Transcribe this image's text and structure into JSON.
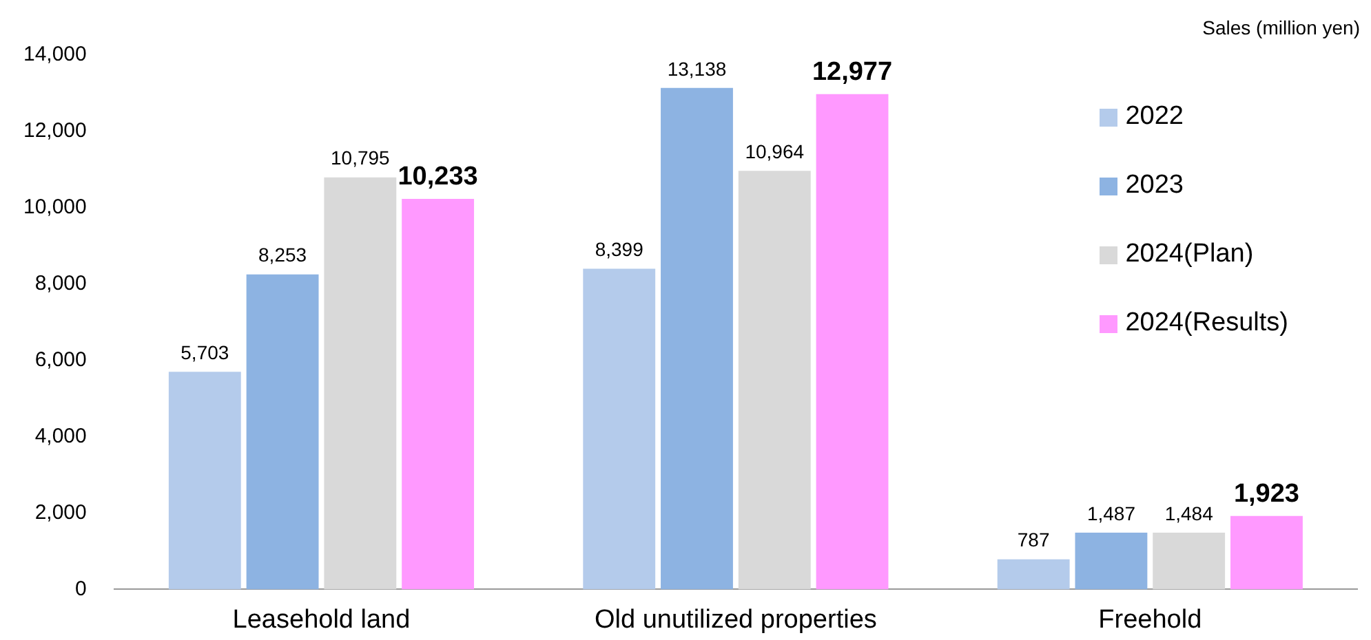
{
  "chart_data": {
    "type": "bar",
    "ylabel": "Sales (million yen)",
    "categories": [
      "Leasehold land",
      "Old unutilized properties",
      "Freehold"
    ],
    "series": [
      {
        "name": "2022",
        "color": "#b4cbeb",
        "values": [
          5703,
          8399,
          787
        ],
        "value_labels": [
          "5,703",
          "8,399",
          "787"
        ]
      },
      {
        "name": "2023",
        "color": "#8db3e2",
        "values": [
          8253,
          13138,
          1487
        ],
        "value_labels": [
          "8,253",
          "13,138",
          "1,487"
        ]
      },
      {
        "name": "2024(Plan)",
        "color": "#d9d9d9",
        "values": [
          10795,
          10964,
          1484
        ],
        "value_labels": [
          "10,795",
          "10,964",
          "1,484"
        ]
      },
      {
        "name": "2024(Results)",
        "color": "#ff99ff",
        "values": [
          10233,
          12977,
          1923
        ],
        "value_labels": [
          "10,233",
          "12,977",
          "1,923"
        ]
      }
    ],
    "ylim": [
      0,
      14000
    ],
    "yticks": [
      0,
      {
        "value": 2000,
        "label": "2,000"
      },
      {
        "value": 4000,
        "label": "4,000"
      },
      {
        "value": 6000,
        "label": "6,000"
      },
      {
        "value": 8000,
        "label": "8,000"
      },
      {
        "value": 10000,
        "label": "10,000"
      },
      {
        "value": 12000,
        "label": "12,000"
      },
      {
        "value": 14000,
        "label": "14,000"
      }
    ],
    "grid": false,
    "legend": "top right"
  }
}
